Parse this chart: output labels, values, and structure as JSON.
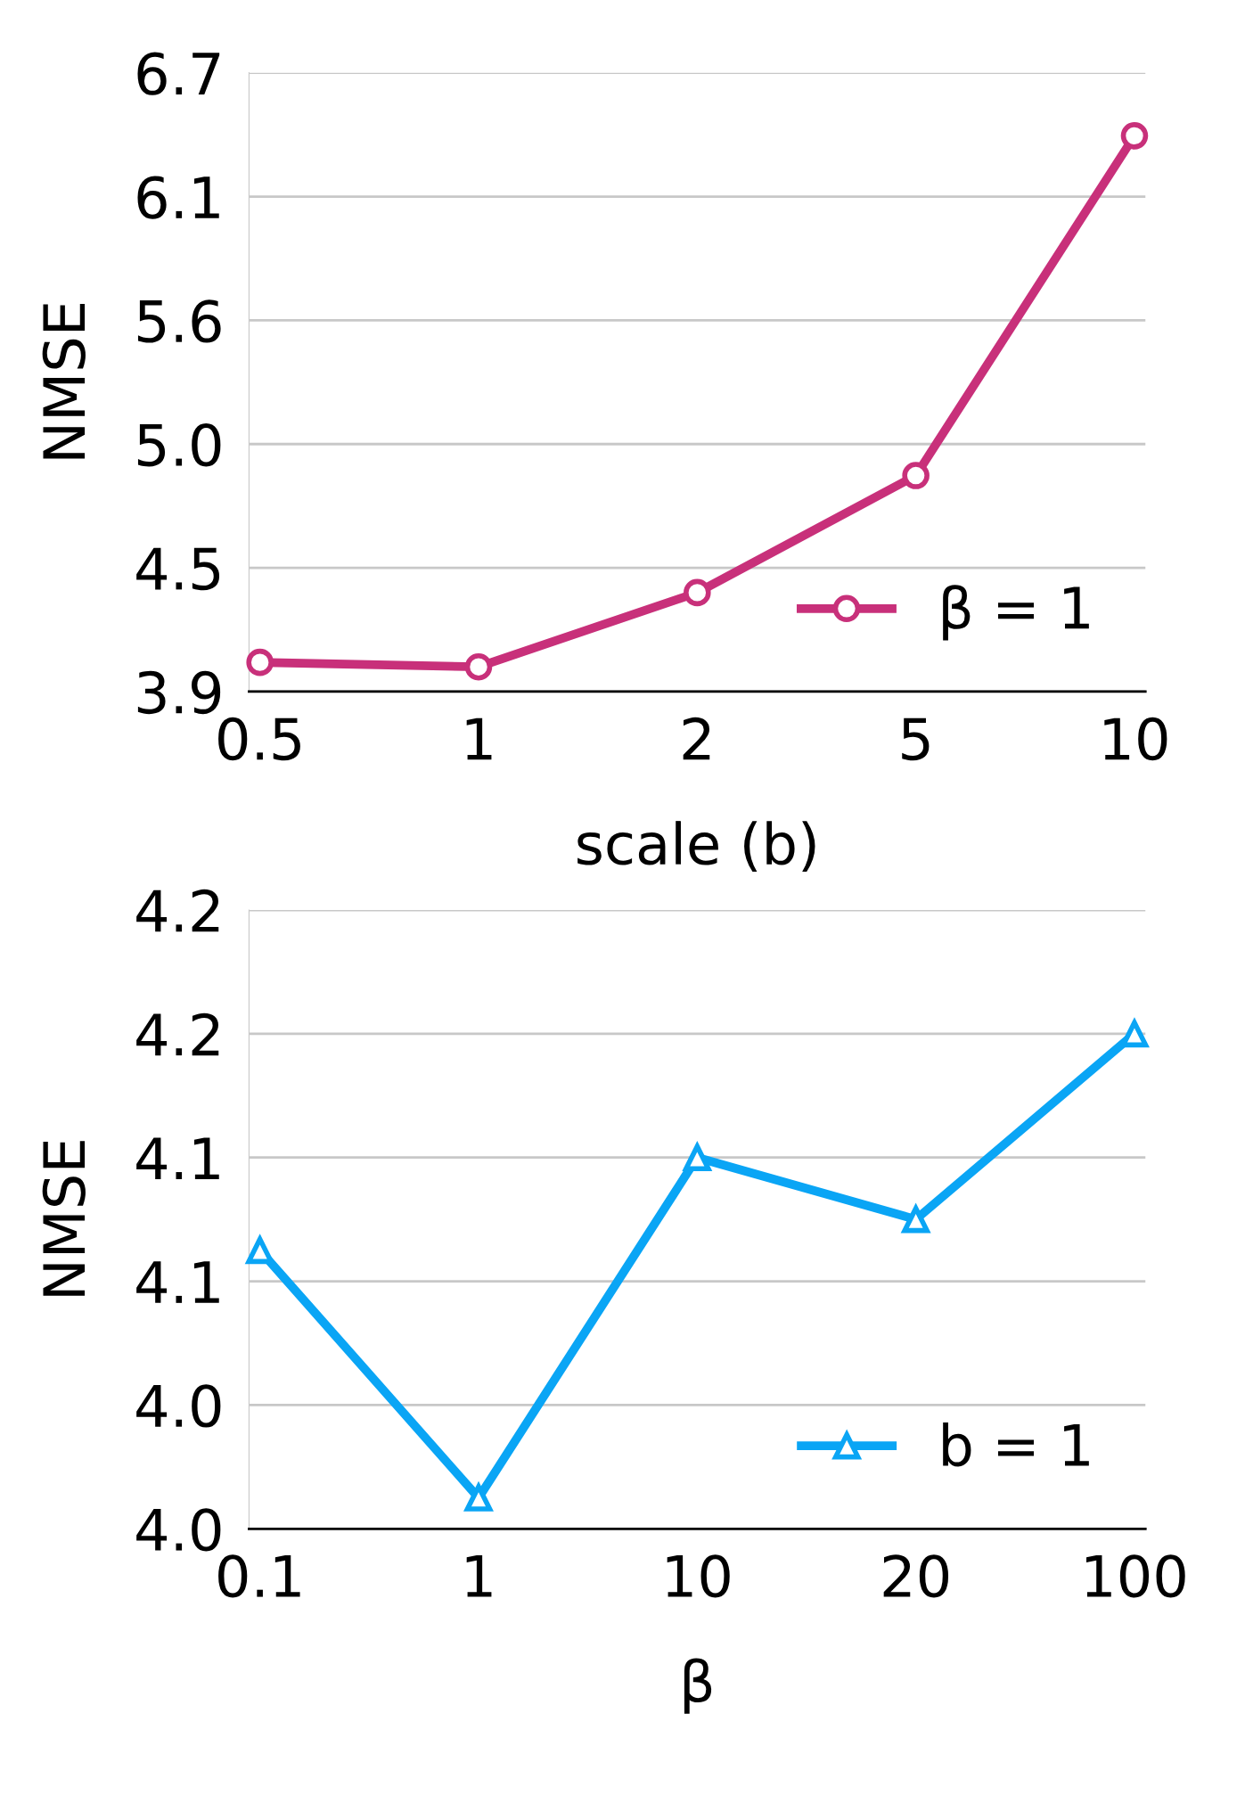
{
  "chart_data": [
    {
      "type": "line",
      "xlabel": "scale (b)",
      "ylabel": "NMSE",
      "categories": [
        "0.5",
        "1",
        "2",
        "5",
        "10"
      ],
      "series": [
        {
          "name": "β = 1",
          "color": "#c8307a",
          "values": [
            4.03,
            4.01,
            4.34,
            4.86,
            6.37
          ]
        }
      ],
      "ylim": [
        3.9,
        6.65
      ],
      "yticks": [
        3.9,
        {
          "value": 4.45,
          "label": "4.5"
        },
        {
          "value": 5.0,
          "label": "5.0"
        },
        {
          "value": 5.55,
          "label": "5.6"
        },
        6.1,
        {
          "value": 6.65,
          "label": "6.7"
        }
      ],
      "grid": "y",
      "legend": "bottom right",
      "marker": "circle",
      "line_style": "solid"
    },
    {
      "type": "line",
      "xlabel": "β",
      "ylabel": "NMSE",
      "categories": [
        "0.1",
        "1",
        "10",
        "20",
        "100"
      ],
      "series": [
        {
          "name": "b = 1",
          "color": "#0aa5f5",
          "values": [
            4.09,
            4.01,
            4.12,
            4.1,
            4.16
          ]
        }
      ],
      "ylim": [
        4.0,
        4.2
      ],
      "yticks": [
        {
          "value": 4.0,
          "label": "4.0"
        },
        {
          "value": 4.04,
          "label": "4.0"
        },
        {
          "value": 4.08,
          "label": "4.1"
        },
        {
          "value": 4.12,
          "label": "4.1"
        },
        {
          "value": 4.16,
          "label": "4.2"
        },
        {
          "value": 4.2,
          "label": "4.2"
        }
      ],
      "grid": "y",
      "legend": "bottom right",
      "marker": "triangle",
      "line_style": "solid"
    }
  ]
}
